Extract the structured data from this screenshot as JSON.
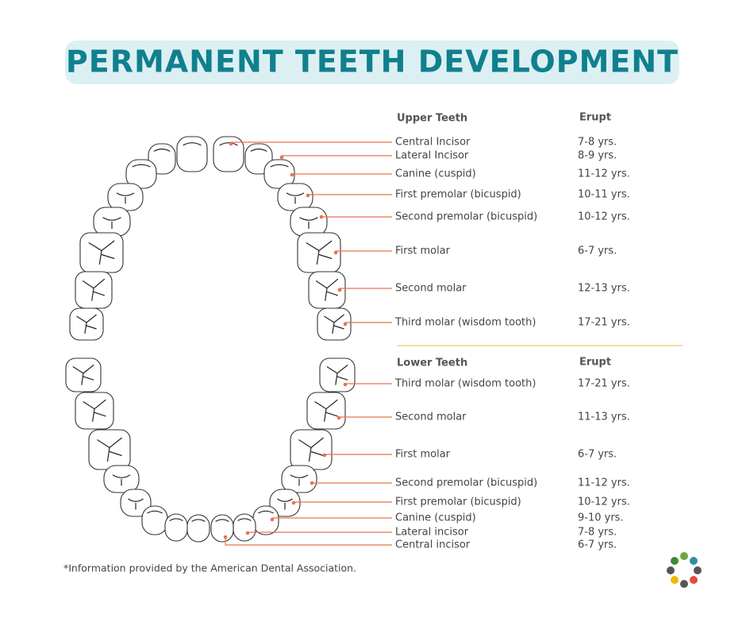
{
  "title": "PERMANENT TEETH DEVELOPMENT",
  "upper": {
    "heading": "Upper Teeth",
    "erupt_heading": "Erupt",
    "rows": [
      [
        "Central Incisor",
        "7-8 yrs."
      ],
      [
        "Lateral Incisor",
        "8-9 yrs."
      ],
      [
        "Canine (cuspid)",
        "11-12 yrs."
      ],
      [
        "First premolar (bicuspid)",
        "10-11 yrs."
      ],
      [
        "Second premolar (bicuspid)",
        "10-12 yrs."
      ],
      [
        "First molar",
        "6-7 yrs."
      ],
      [
        "Second molar",
        "12-13 yrs."
      ],
      [
        "Third molar (wisdom tooth)",
        "17-21 yrs."
      ]
    ]
  },
  "lower": {
    "heading": "Lower Teeth",
    "erupt_heading": "Erupt",
    "rows": [
      [
        "Third molar (wisdom tooth)",
        "17-21 yrs."
      ],
      [
        "Second molar",
        "11-13 yrs."
      ],
      [
        "First molar",
        "6-7 yrs."
      ],
      [
        "Second premolar (bicuspid)",
        "11-12 yrs."
      ],
      [
        "First premolar (bicuspid)",
        "10-12 yrs."
      ],
      [
        "Canine (cuspid)",
        "9-10 yrs."
      ],
      [
        "Lateral incisor",
        "7-8 yrs."
      ],
      [
        "Central incisor",
        "6-7 yrs."
      ]
    ]
  },
  "footnote": "*Information provided by the American Dental Association."
}
